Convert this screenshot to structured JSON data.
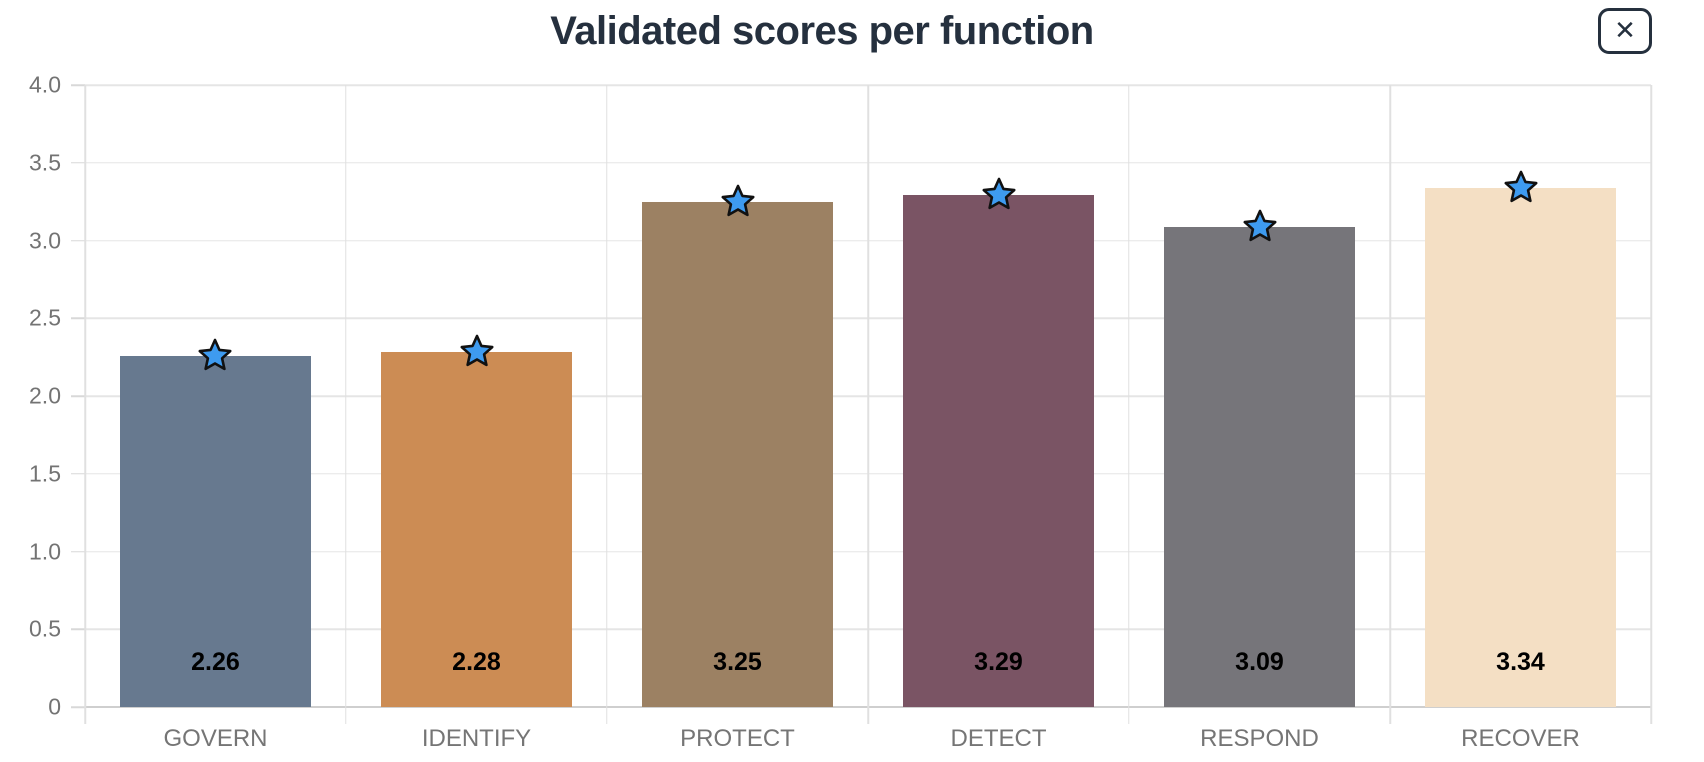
{
  "header": {
    "close_icon": "✕"
  },
  "chart_data": {
    "type": "bar",
    "title": "Validated scores per function",
    "categories": [
      "GOVERN",
      "IDENTIFY",
      "PROTECT",
      "DETECT",
      "RESPOND",
      "RECOVER"
    ],
    "values": [
      2.26,
      2.28,
      3.25,
      3.29,
      3.09,
      3.34
    ],
    "value_labels": [
      "2.26",
      "2.28",
      "3.25",
      "3.29",
      "3.09",
      "3.34"
    ],
    "bar_colors": [
      "#67798F",
      "#CC8C54",
      "#9C8163",
      "#7A5464",
      "#76757A",
      "#F4DFC4"
    ],
    "marker": {
      "shape": "star",
      "fill": "#3E9BF0",
      "stroke": "#111111"
    },
    "xlabel": "",
    "ylabel": "",
    "ylim": [
      0,
      4
    ],
    "ytick_step": 0.5,
    "ytick_labels": [
      "4.0",
      "3.5",
      "3.0",
      "2.5",
      "2.0",
      "1.5",
      "1.0",
      "0.5",
      "0"
    ],
    "grid": true,
    "legend_position": "none"
  },
  "style": {
    "title_color": "#25303E",
    "axis_label_color": "#737373",
    "value_label_color": "#000000",
    "gridline_color": "#E5E5E5",
    "baseline_color": "#CFCFCF",
    "background": "#FFFFFF"
  }
}
